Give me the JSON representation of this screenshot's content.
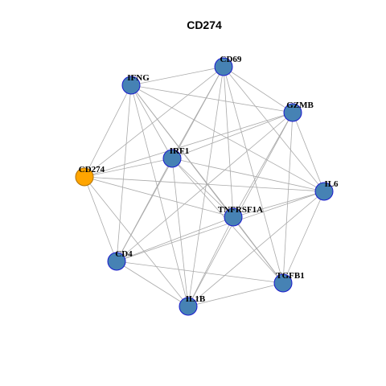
{
  "title": "CD274",
  "nodes": [
    {
      "label": "CD69"
    },
    {
      "label": "IFNG"
    },
    {
      "label": "GZMB"
    },
    {
      "label": "IRF1"
    },
    {
      "label": "CD274"
    },
    {
      "label": "IL6"
    },
    {
      "label": "TNFRSF1A"
    },
    {
      "label": "CD4"
    },
    {
      "label": "TGFB1"
    },
    {
      "label": "IL1B"
    }
  ]
}
